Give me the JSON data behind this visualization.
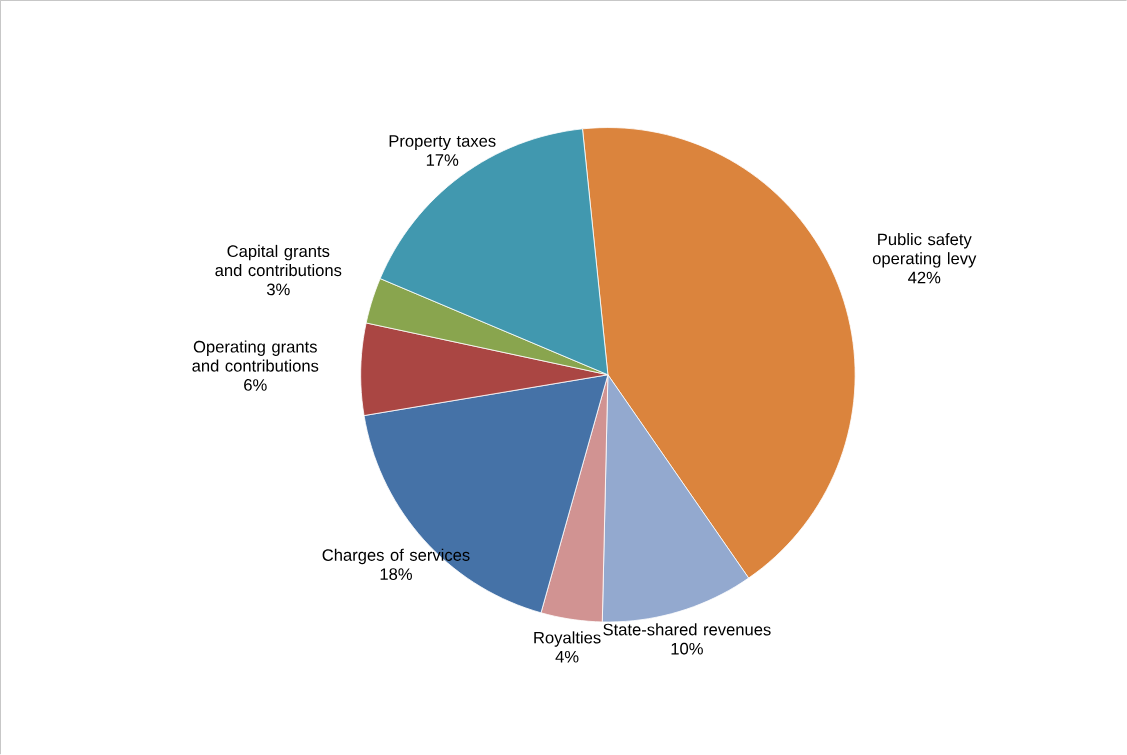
{
  "chart_data": {
    "type": "pie",
    "categories": [
      "Public safety operating levy",
      "State-shared revenues",
      "Royalties",
      "Charges of services",
      "Operating grants and contributions",
      "Capital grants and contributions",
      "Property taxes"
    ],
    "values": [
      42,
      10,
      4,
      18,
      6,
      3,
      17
    ],
    "value_labels": [
      "42%",
      "10%",
      "4%",
      "18%",
      "6%",
      "3%",
      "17%"
    ],
    "colors": [
      "#db843d",
      "#93a9cf",
      "#d19392",
      "#4572a7",
      "#aa4643",
      "#89a54e",
      "#4198af"
    ]
  }
}
